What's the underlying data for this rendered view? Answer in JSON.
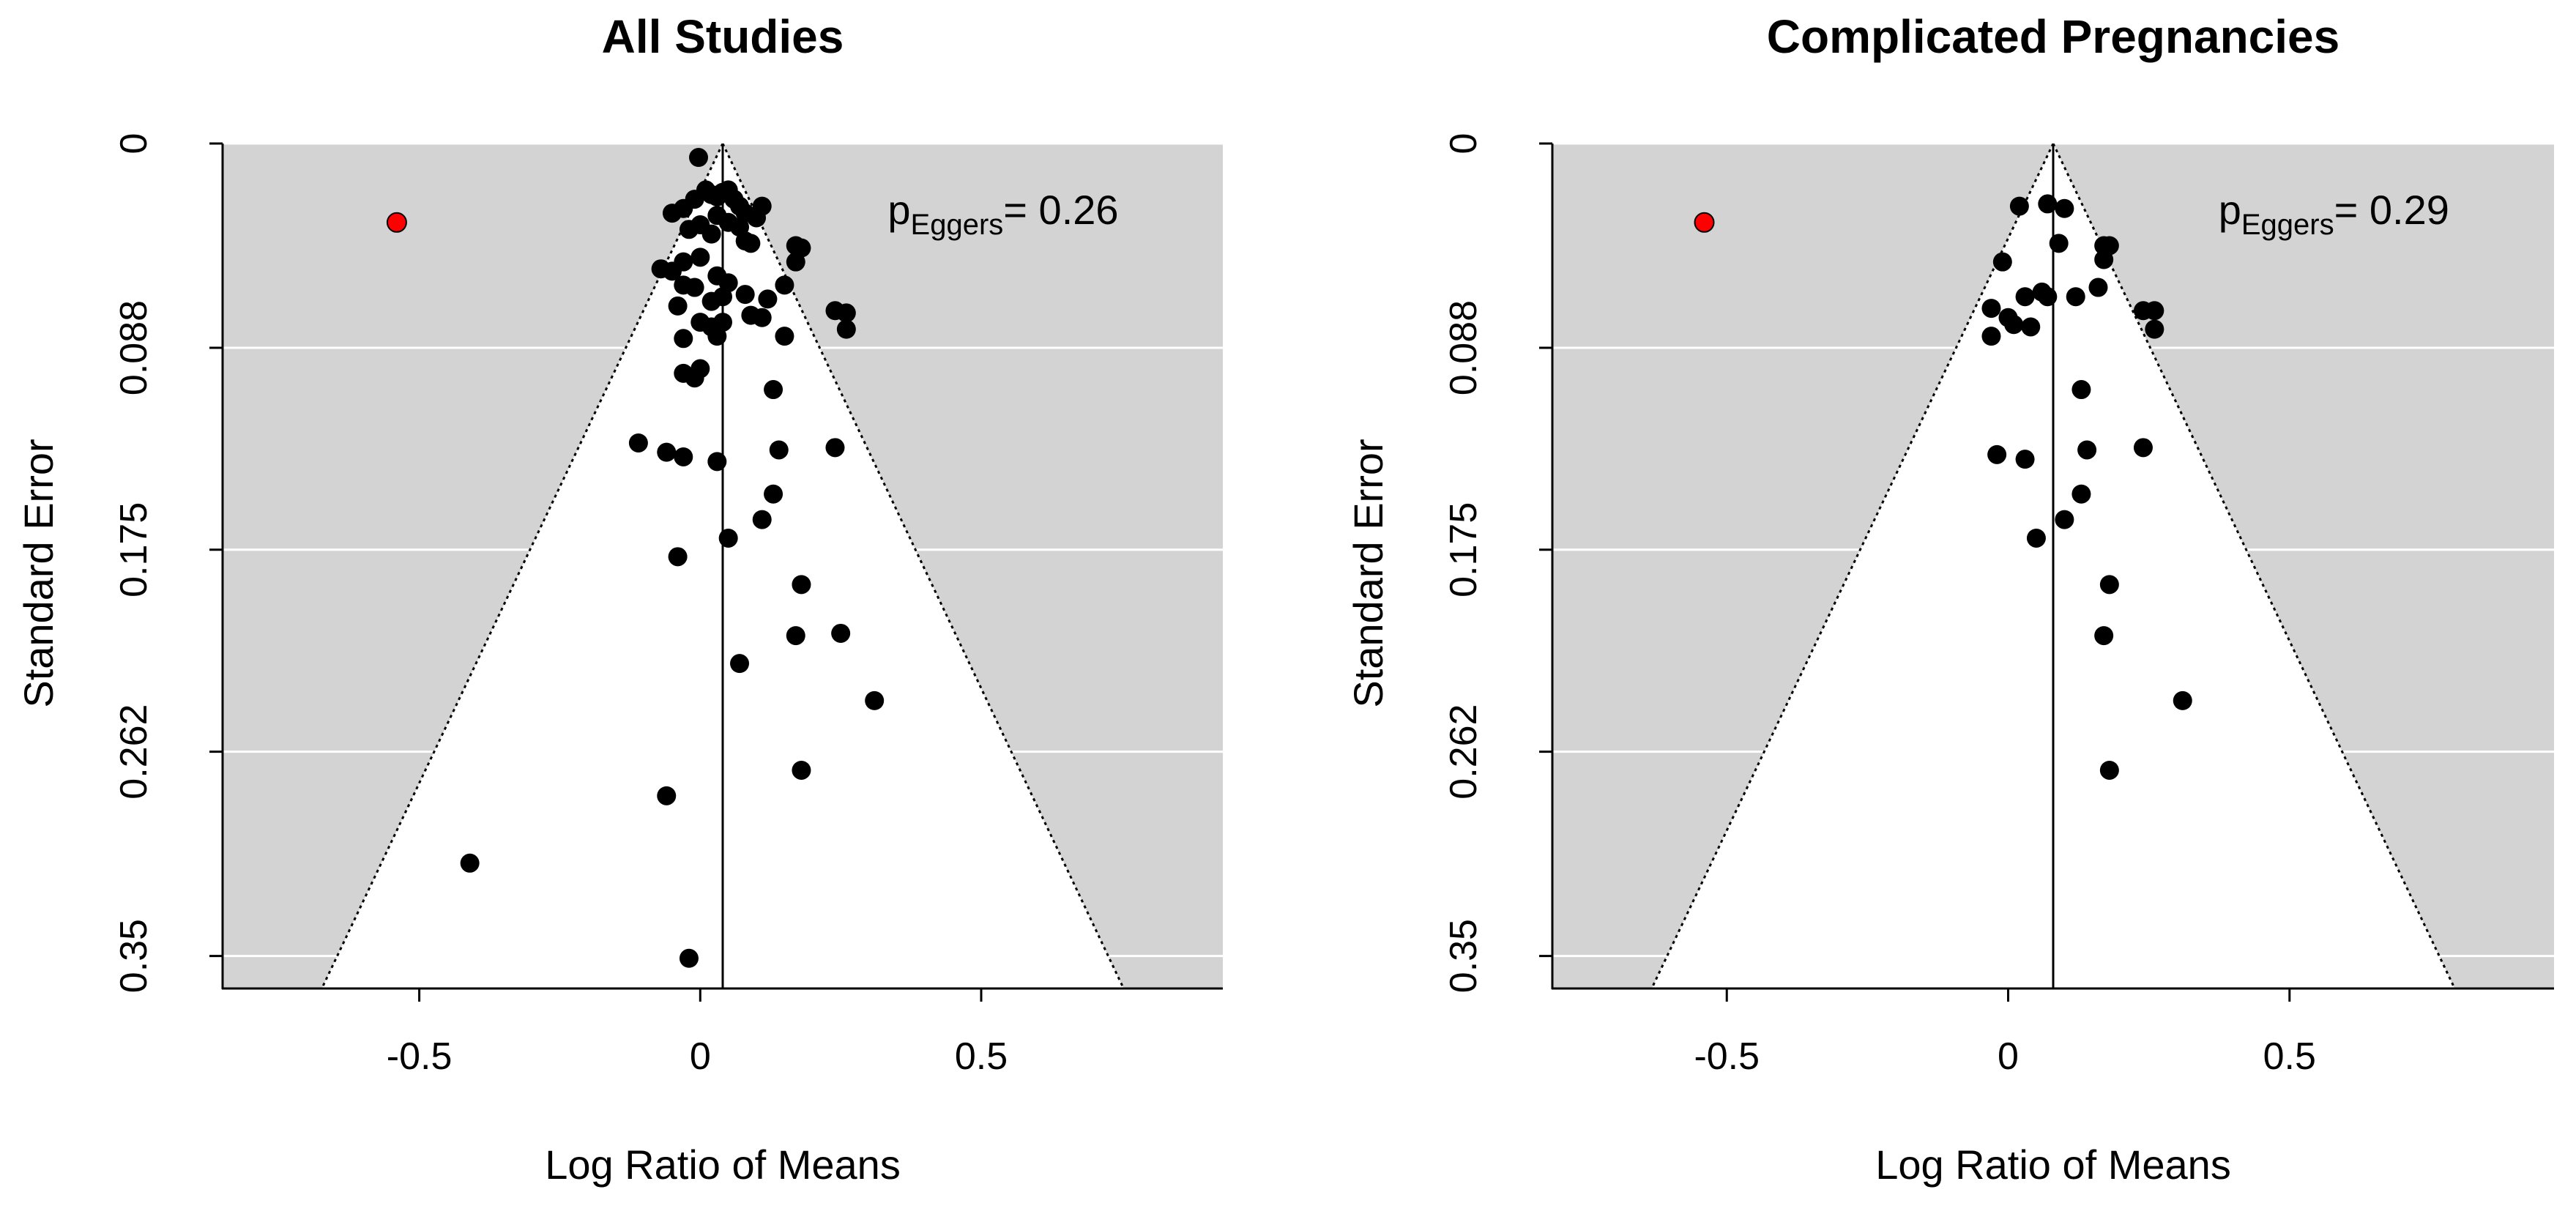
{
  "chart_data": [
    {
      "type": "scatter",
      "subtype": "funnel",
      "title": "All Studies",
      "xlabel": "Log Ratio of Means",
      "ylabel": "Standard Error",
      "xlim": [
        -0.85,
        0.93
      ],
      "ylim": [
        0,
        0.364
      ],
      "y_reversed": true,
      "xticks": [
        -0.5,
        0,
        0.5
      ],
      "xtick_labels": [
        "-0.5",
        "0",
        "0.5"
      ],
      "yticks": [
        0,
        0.088,
        0.175,
        0.262,
        0.35
      ],
      "ytick_labels": [
        "0",
        "0.088",
        "0.175",
        "0.262",
        "0.35"
      ],
      "center": 0.04,
      "funnel_z": 1.96,
      "annotation": {
        "prefix": "p",
        "subscript": "Eggers",
        "text": "= 0.26"
      },
      "points": [
        {
          "x": -0.003,
          "y": 0.006
        },
        {
          "x": -0.05,
          "y": 0.03
        },
        {
          "x": -0.03,
          "y": 0.028
        },
        {
          "x": -0.01,
          "y": 0.024
        },
        {
          "x": 0.01,
          "y": 0.02
        },
        {
          "x": 0.02,
          "y": 0.022
        },
        {
          "x": 0.03,
          "y": 0.023
        },
        {
          "x": 0.04,
          "y": 0.021
        },
        {
          "x": 0.05,
          "y": 0.02
        },
        {
          "x": 0.06,
          "y": 0.024
        },
        {
          "x": 0.07,
          "y": 0.027
        },
        {
          "x": 0.08,
          "y": 0.03
        },
        {
          "x": 0.11,
          "y": 0.027
        },
        {
          "x": 0.1,
          "y": 0.032
        },
        {
          "x": 0.0,
          "y": 0.035
        },
        {
          "x": 0.03,
          "y": 0.031
        },
        {
          "x": 0.05,
          "y": 0.034
        },
        {
          "x": 0.07,
          "y": 0.036
        },
        {
          "x": 0.08,
          "y": 0.042
        },
        {
          "x": 0.09,
          "y": 0.043
        },
        {
          "x": -0.02,
          "y": 0.037
        },
        {
          "x": 0.02,
          "y": 0.039
        },
        {
          "x": -0.07,
          "y": 0.054
        },
        {
          "x": -0.05,
          "y": 0.055
        },
        {
          "x": -0.03,
          "y": 0.051
        },
        {
          "x": 0.0,
          "y": 0.049
        },
        {
          "x": 0.17,
          "y": 0.044
        },
        {
          "x": 0.18,
          "y": 0.045
        },
        {
          "x": 0.17,
          "y": 0.051
        },
        {
          "x": -0.03,
          "y": 0.061
        },
        {
          "x": -0.01,
          "y": 0.062
        },
        {
          "x": 0.03,
          "y": 0.057
        },
        {
          "x": 0.05,
          "y": 0.06
        },
        {
          "x": 0.15,
          "y": 0.061
        },
        {
          "x": -0.04,
          "y": 0.07
        },
        {
          "x": 0.02,
          "y": 0.068
        },
        {
          "x": 0.04,
          "y": 0.066
        },
        {
          "x": 0.08,
          "y": 0.065
        },
        {
          "x": 0.12,
          "y": 0.067
        },
        {
          "x": 0.09,
          "y": 0.074
        },
        {
          "x": 0.11,
          "y": 0.075
        },
        {
          "x": 0.0,
          "y": 0.077
        },
        {
          "x": 0.02,
          "y": 0.079
        },
        {
          "x": 0.04,
          "y": 0.077
        },
        {
          "x": 0.15,
          "y": 0.083
        },
        {
          "x": 0.24,
          "y": 0.072
        },
        {
          "x": 0.26,
          "y": 0.073
        },
        {
          "x": 0.26,
          "y": 0.08
        },
        {
          "x": -0.03,
          "y": 0.084
        },
        {
          "x": 0.03,
          "y": 0.083
        },
        {
          "x": 0.0,
          "y": 0.097
        },
        {
          "x": -0.03,
          "y": 0.099
        },
        {
          "x": -0.01,
          "y": 0.101
        },
        {
          "x": 0.13,
          "y": 0.106
        },
        {
          "x": -0.11,
          "y": 0.129
        },
        {
          "x": -0.06,
          "y": 0.133
        },
        {
          "x": -0.03,
          "y": 0.135
        },
        {
          "x": 0.03,
          "y": 0.137
        },
        {
          "x": 0.14,
          "y": 0.132
        },
        {
          "x": 0.24,
          "y": 0.131
        },
        {
          "x": 0.13,
          "y": 0.151
        },
        {
          "x": 0.11,
          "y": 0.162
        },
        {
          "x": 0.05,
          "y": 0.17
        },
        {
          "x": -0.04,
          "y": 0.178
        },
        {
          "x": 0.18,
          "y": 0.19
        },
        {
          "x": 0.17,
          "y": 0.212
        },
        {
          "x": 0.25,
          "y": 0.211
        },
        {
          "x": 0.07,
          "y": 0.224
        },
        {
          "x": 0.31,
          "y": 0.24
        },
        {
          "x": 0.18,
          "y": 0.27
        },
        {
          "x": -0.06,
          "y": 0.281
        },
        {
          "x": -0.41,
          "y": 0.31
        },
        {
          "x": -0.02,
          "y": 0.351
        }
      ],
      "outlier": {
        "x": -0.54,
        "y": 0.034,
        "color": "#ff0000"
      }
    },
    {
      "type": "scatter",
      "subtype": "funnel",
      "title": "Complicated Pregnancies",
      "xlabel": "Log Ratio of Means",
      "ylabel": "Standard Error",
      "xlim": [
        -0.81,
        0.97
      ],
      "ylim": [
        0,
        0.364
      ],
      "y_reversed": true,
      "xticks": [
        -0.5,
        0,
        0.5
      ],
      "xtick_labels": [
        "-0.5",
        "0",
        "0.5"
      ],
      "yticks": [
        0,
        0.088,
        0.175,
        0.262,
        0.35
      ],
      "ytick_labels": [
        "0",
        "0.088",
        "0.175",
        "0.262",
        "0.35"
      ],
      "center": 0.08,
      "funnel_z": 1.96,
      "annotation": {
        "prefix": "p",
        "subscript": "Eggers",
        "text": "= 0.29"
      },
      "points": [
        {
          "x": 0.02,
          "y": 0.027
        },
        {
          "x": 0.07,
          "y": 0.026
        },
        {
          "x": 0.1,
          "y": 0.028
        },
        {
          "x": 0.09,
          "y": 0.043
        },
        {
          "x": 0.17,
          "y": 0.044
        },
        {
          "x": 0.18,
          "y": 0.044
        },
        {
          "x": 0.17,
          "y": 0.05
        },
        {
          "x": -0.01,
          "y": 0.051
        },
        {
          "x": 0.16,
          "y": 0.062
        },
        {
          "x": 0.03,
          "y": 0.066
        },
        {
          "x": 0.06,
          "y": 0.064
        },
        {
          "x": 0.07,
          "y": 0.066
        },
        {
          "x": 0.12,
          "y": 0.066
        },
        {
          "x": -0.03,
          "y": 0.071
        },
        {
          "x": 0.0,
          "y": 0.075
        },
        {
          "x": 0.01,
          "y": 0.078
        },
        {
          "x": 0.04,
          "y": 0.079
        },
        {
          "x": -0.03,
          "y": 0.083
        },
        {
          "x": 0.24,
          "y": 0.072
        },
        {
          "x": 0.26,
          "y": 0.072
        },
        {
          "x": 0.26,
          "y": 0.08
        },
        {
          "x": 0.13,
          "y": 0.106
        },
        {
          "x": -0.02,
          "y": 0.134
        },
        {
          "x": 0.03,
          "y": 0.136
        },
        {
          "x": 0.14,
          "y": 0.132
        },
        {
          "x": 0.24,
          "y": 0.131
        },
        {
          "x": 0.13,
          "y": 0.151
        },
        {
          "x": 0.1,
          "y": 0.162
        },
        {
          "x": 0.05,
          "y": 0.17
        },
        {
          "x": 0.18,
          "y": 0.19
        },
        {
          "x": 0.17,
          "y": 0.212
        },
        {
          "x": 0.31,
          "y": 0.24
        },
        {
          "x": 0.18,
          "y": 0.27
        }
      ],
      "outlier": {
        "x": -0.54,
        "y": 0.034,
        "color": "#ff0000"
      }
    }
  ],
  "colors": {
    "panel_background": "#d3d3d3",
    "funnel_fill": "#ffffff",
    "gridline": "#ffffff",
    "point": "#000000",
    "outlier": "#ff0000"
  }
}
